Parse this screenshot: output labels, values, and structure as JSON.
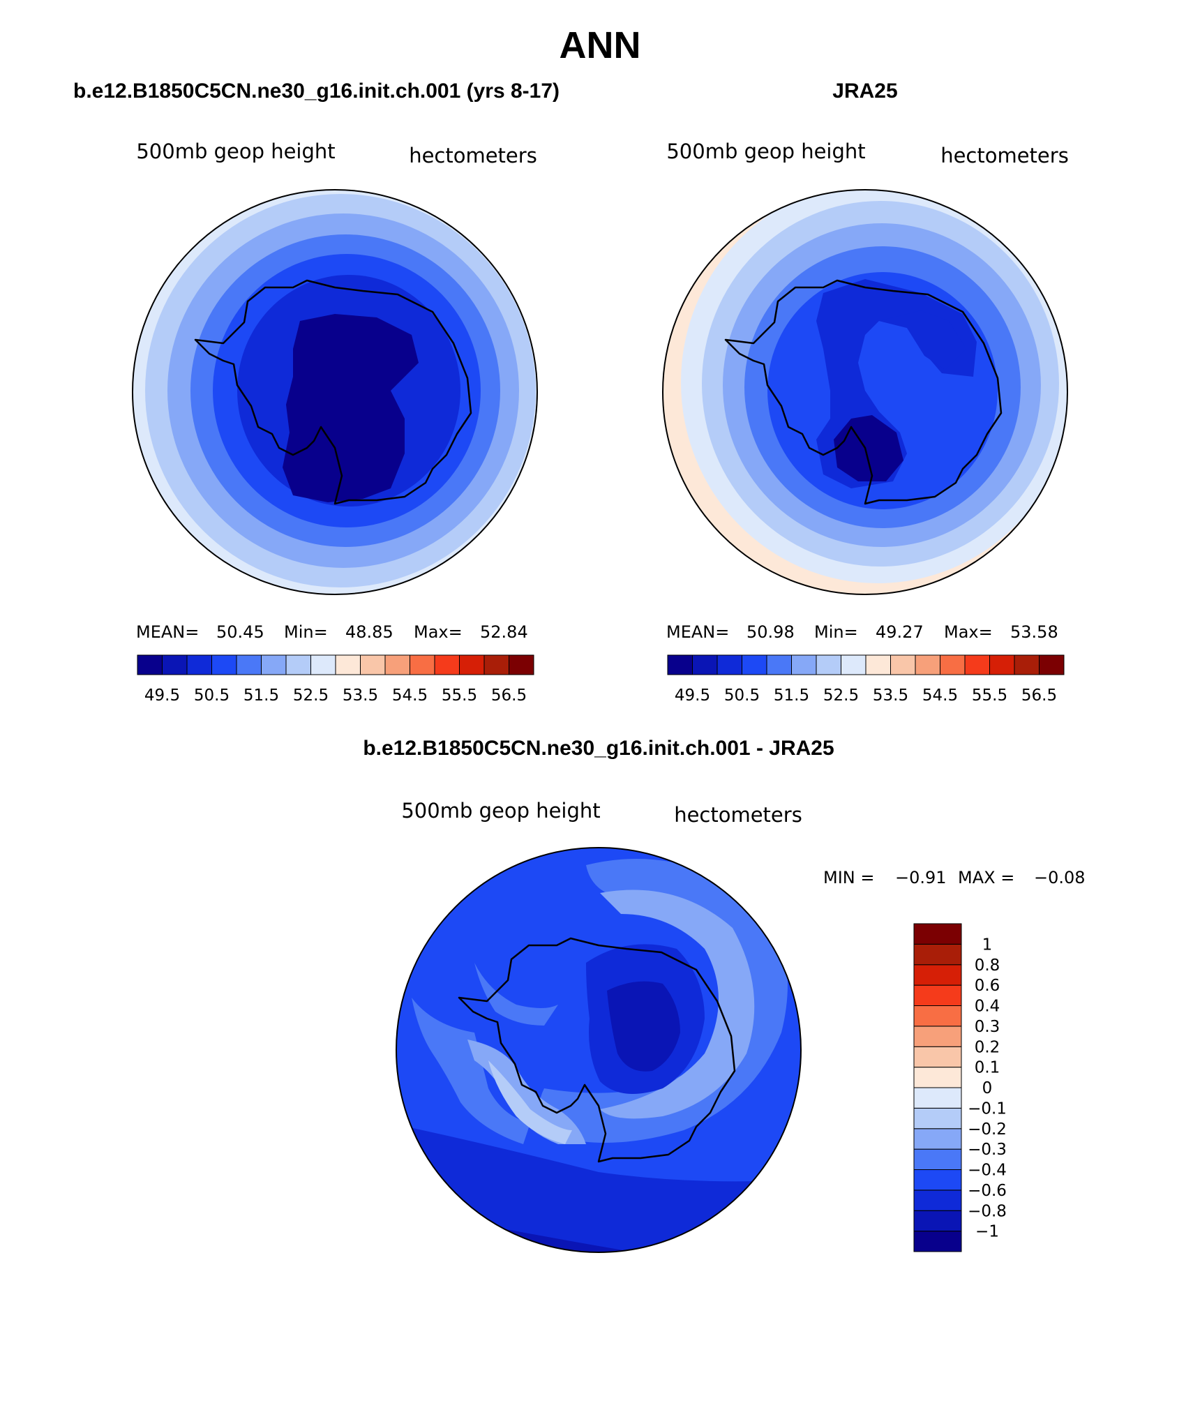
{
  "title": "ANN",
  "colors": {
    "scale": [
      "#08008c",
      "#0a15b5",
      "#0f2ad8",
      "#1d49f5",
      "#4a78f7",
      "#86a8f7",
      "#b4ccf8",
      "#dde9fb",
      "#fde8d8",
      "#f9c6a9",
      "#f7a07a",
      "#f86e44",
      "#f53b1b",
      "#d61f06",
      "#a91e08",
      "#7b0002"
    ]
  },
  "panels": [
    {
      "case": "b.e12.B1850C5CN.ne30_g16.init.ch.001 (yrs 8-17)",
      "variable": "500mb geop height",
      "units": "hectometers",
      "stats": {
        "mean_label": "MEAN=",
        "mean": "50.45",
        "min_label": "Min=",
        "min": "48.85",
        "max_label": "Max=",
        "max": "52.84"
      },
      "colorbar_labels": [
        "49.5",
        "50.5",
        "51.5",
        "52.5",
        "53.5",
        "54.5",
        "55.5",
        "56.5"
      ]
    },
    {
      "case": "JRA25",
      "variable": "500mb geop height",
      "units": "hectometers",
      "stats": {
        "mean_label": "MEAN=",
        "mean": "50.98",
        "min_label": "Min=",
        "min": "49.27",
        "max_label": "Max=",
        "max": "53.58"
      },
      "colorbar_labels": [
        "49.5",
        "50.5",
        "51.5",
        "52.5",
        "53.5",
        "54.5",
        "55.5",
        "56.5"
      ]
    }
  ],
  "difference": {
    "title": "b.e12.B1850C5CN.ne30_g16.init.ch.001 - JRA25",
    "variable": "500mb geop height",
    "units": "hectometers",
    "stats": {
      "min_label": "MIN =",
      "min": "−0.91",
      "max_label": "MAX =",
      "max": "−0.08"
    },
    "colorbar_labels": [
      "1",
      "0.8",
      "0.6",
      "0.4",
      "0.3",
      "0.2",
      "0.1",
      "0",
      "−0.1",
      "−0.2",
      "−0.3",
      "−0.4",
      "−0.6",
      "−0.8",
      "−1"
    ]
  }
}
